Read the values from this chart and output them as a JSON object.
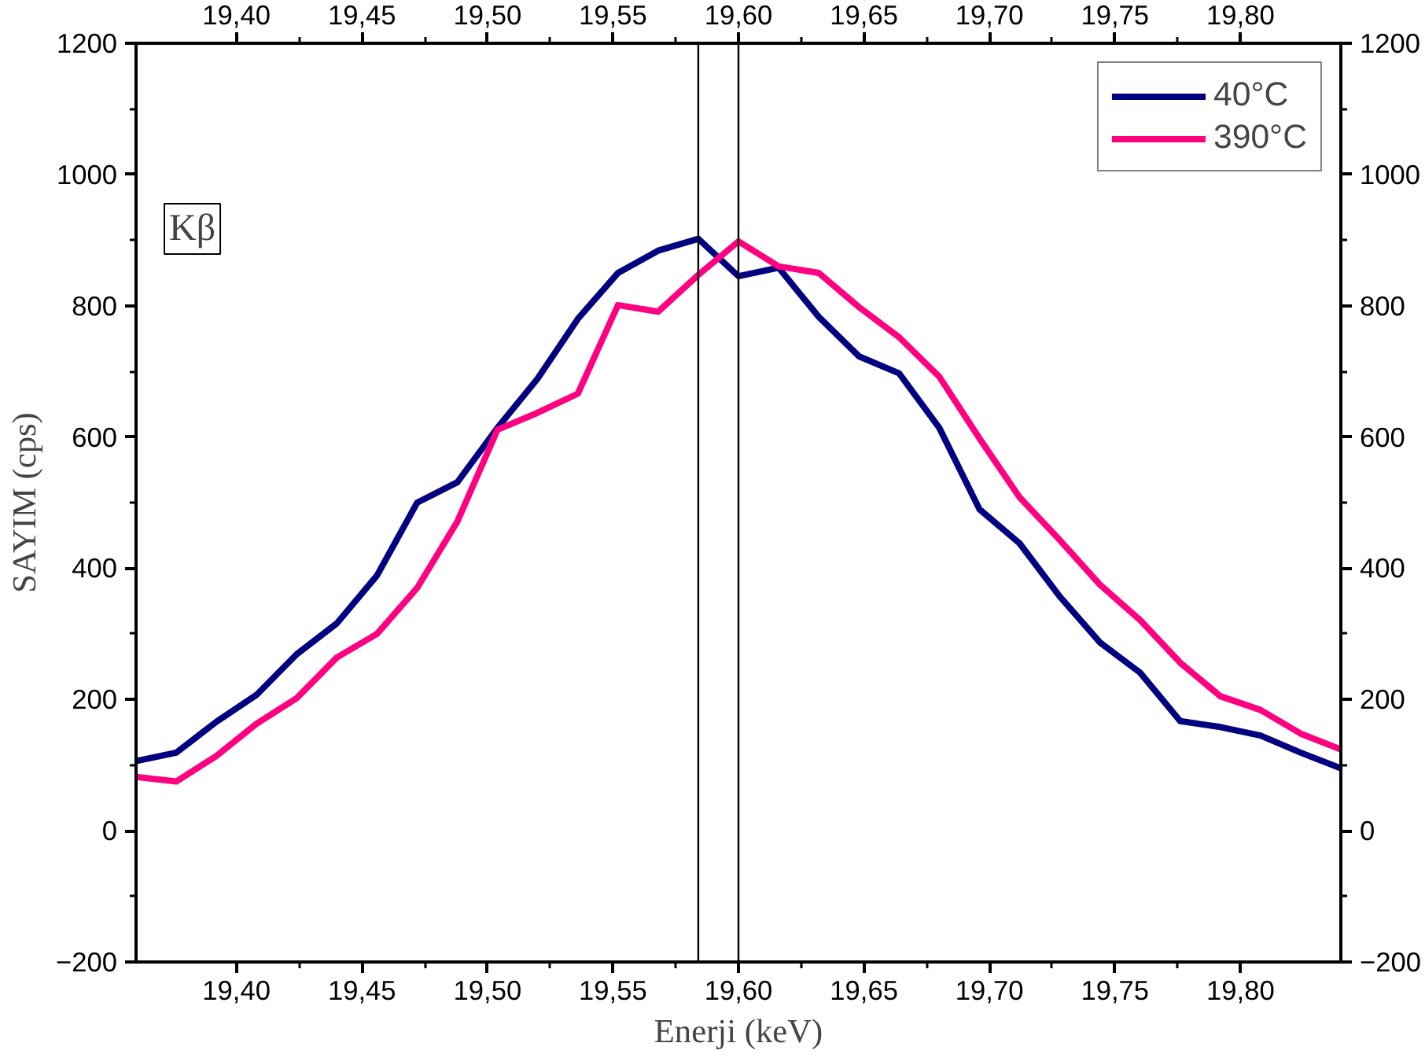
{
  "chart_data": {
    "type": "line",
    "xlabel": "Enerji (keV)",
    "ylabel": "SAYIM (cps)",
    "x": [
      19.36,
      19.376,
      19.392,
      19.408,
      19.424,
      19.44,
      19.456,
      19.472,
      19.488,
      19.504,
      19.52,
      19.536,
      19.552,
      19.568,
      19.584,
      19.6,
      19.616,
      19.632,
      19.648,
      19.664,
      19.68,
      19.696,
      19.712,
      19.728,
      19.744,
      19.76,
      19.776,
      19.792,
      19.808,
      19.824,
      19.84
    ],
    "series": [
      {
        "name": "40°C",
        "color": "#000080",
        "values": [
          106,
          119,
          166,
          207,
          269,
          316,
          389,
          500,
          531,
          614,
          689,
          780,
          850,
          884,
          902,
          845,
          858,
          783,
          723,
          697,
          614,
          490,
          438,
          357,
          287,
          241,
          167,
          158,
          145,
          119,
          95
        ]
      },
      {
        "name": "390°C",
        "color": "#ff0080",
        "values": [
          82,
          75,
          114,
          163,
          202,
          264,
          300,
          370,
          471,
          611,
          637,
          666,
          801,
          791,
          847,
          898,
          860,
          850,
          798,
          752,
          692,
          598,
          508,
          443,
          375,
          321,
          256,
          205,
          184,
          148,
          124
        ]
      }
    ],
    "xlim": [
      19.36,
      19.84
    ],
    "ylim": [
      -200,
      1200
    ],
    "xticks": [
      {
        "value": 19.4,
        "label": "19,40"
      },
      {
        "value": 19.45,
        "label": "19,45"
      },
      {
        "value": 19.5,
        "label": "19,50"
      },
      {
        "value": 19.55,
        "label": "19,55"
      },
      {
        "value": 19.6,
        "label": "19,60"
      },
      {
        "value": 19.65,
        "label": "19,65"
      },
      {
        "value": 19.7,
        "label": "19,70"
      },
      {
        "value": 19.75,
        "label": "19,75"
      },
      {
        "value": 19.8,
        "label": "19,80"
      }
    ],
    "x2lim": [
      19.36,
      19.84
    ],
    "x2ticks": [
      {
        "value": 19.4,
        "label": "19,40"
      },
      {
        "value": 19.45,
        "label": "19,45"
      },
      {
        "value": 19.5,
        "label": "19,50"
      },
      {
        "value": 19.55,
        "label": "19,55"
      },
      {
        "value": 19.6,
        "label": "19,60"
      },
      {
        "value": 19.65,
        "label": "19,65"
      },
      {
        "value": 19.7,
        "label": "19,70"
      },
      {
        "value": 19.75,
        "label": "19,75"
      },
      {
        "value": 19.8,
        "label": "19,80"
      }
    ],
    "yticks": [
      -200,
      0,
      200,
      400,
      600,
      800,
      1000,
      1200
    ],
    "y2lim": [
      -200,
      1200
    ],
    "y2ticks": [
      -200,
      0,
      200,
      400,
      600,
      800,
      1000,
      1200
    ],
    "ref_lines": [
      {
        "axis": "x",
        "value": 19.584,
        "color": "#000000"
      },
      {
        "axis": "x",
        "value": 19.6,
        "color": "#000000"
      }
    ],
    "annotations": [
      "Kβ"
    ],
    "legend": "top right",
    "grid": false
  }
}
